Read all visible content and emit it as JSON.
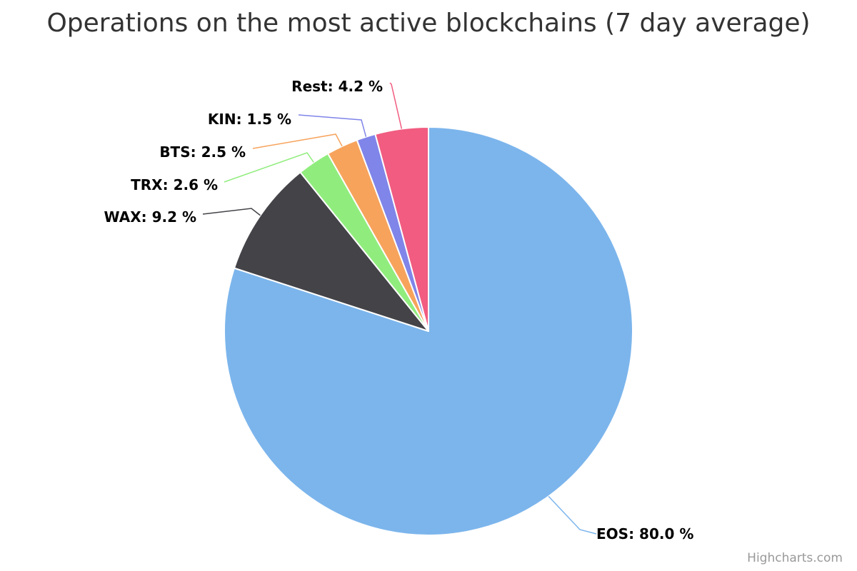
{
  "chart_data": {
    "type": "pie",
    "title": "Operations on the most active blockchains (7 day average)",
    "unit": "%",
    "slices": [
      {
        "name": "EOS",
        "value": 80.0,
        "label": "EOS: 80.0 %",
        "color": "#7cb5ec"
      },
      {
        "name": "WAX",
        "value": 9.2,
        "label": "WAX: 9.2 %",
        "color": "#434348"
      },
      {
        "name": "TRX",
        "value": 2.6,
        "label": "TRX: 2.6 %",
        "color": "#90ed7d"
      },
      {
        "name": "BTS",
        "value": 2.5,
        "label": "BTS: 2.5 %",
        "color": "#f7a35c"
      },
      {
        "name": "KIN",
        "value": 1.5,
        "label": "KIN: 1.5 %",
        "color": "#8085e9"
      },
      {
        "name": "Rest",
        "value": 4.2,
        "label": "Rest: 4.2 %",
        "color": "#f15c80"
      }
    ]
  },
  "credits": "Highcharts.com"
}
